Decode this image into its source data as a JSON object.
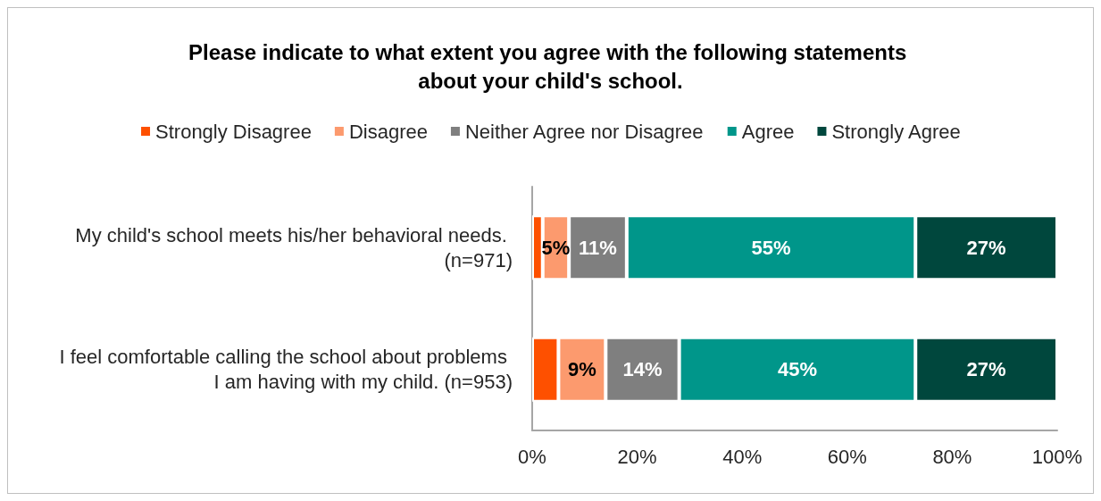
{
  "chart_data": {
    "type": "bar",
    "orientation": "horizontal",
    "stacked": true,
    "title": "Please indicate to what extent you agree with the following statements about your child's school.",
    "categories": [
      "My child's school meets his/her behavioral needs. (n=971)",
      "I feel comfortable calling the school about problems I am having with my child. (n=953)"
    ],
    "series": [
      {
        "name": "Strongly Disagree",
        "color": "#fe5000",
        "values": [
          2,
          5
        ],
        "value_labels": [
          null,
          null
        ]
      },
      {
        "name": "Disagree",
        "color": "#fc9a6e",
        "values": [
          5,
          9
        ],
        "value_labels": [
          "5%",
          "9%"
        ]
      },
      {
        "name": "Neither Agree nor Disagree",
        "color": "#7f7f7f",
        "values": [
          11,
          14
        ],
        "value_labels": [
          "11%",
          "14%"
        ]
      },
      {
        "name": "Agree",
        "color": "#00968a",
        "values": [
          55,
          45
        ],
        "value_labels": [
          "55%",
          "45%"
        ]
      },
      {
        "name": "Strongly Agree",
        "color": "#00473d",
        "values": [
          27,
          27
        ],
        "value_labels": [
          "27%",
          "27%"
        ]
      }
    ],
    "xlim": [
      0,
      100
    ],
    "xticks": [
      {
        "value": 0,
        "label": "0%"
      },
      {
        "value": 20,
        "label": "20%"
      },
      {
        "value": 40,
        "label": "40%"
      },
      {
        "value": 60,
        "label": "60%"
      },
      {
        "value": 80,
        "label": "80%"
      },
      {
        "value": 100,
        "label": "100%"
      }
    ],
    "grid": false,
    "legend": "top"
  }
}
